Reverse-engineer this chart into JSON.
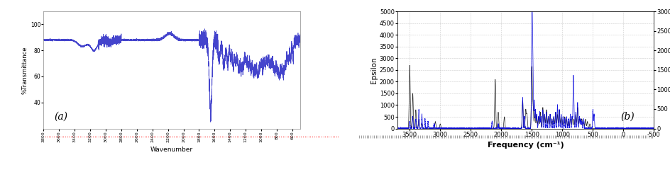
{
  "panel_a": {
    "xlabel": "Wavenumber",
    "ylabel": "%Transmittance",
    "xlim": [
      3800,
      500
    ],
    "ylim": [
      20,
      110
    ],
    "yticks": [
      40,
      60,
      80,
      100
    ],
    "xticks": [
      3800,
      3600,
      3400,
      3200,
      3000,
      2800,
      2600,
      2400,
      2200,
      2000,
      1800,
      1600,
      1400,
      1200,
      1000,
      800,
      600
    ],
    "line_color": "#4444cc",
    "label": "(a)",
    "background": "#ffffff"
  },
  "panel_b": {
    "xlabel": "Frequency (cm⁻¹)",
    "ylabel_left": "Epsilon",
    "xlim": [
      3700,
      -500
    ],
    "ylim_left": [
      5000,
      0
    ],
    "ylim_right": [
      3000,
      0
    ],
    "yticks_left": [
      0,
      500,
      1000,
      1500,
      2000,
      2500,
      3000,
      3500,
      4000,
      4500,
      5000
    ],
    "yticks_right": [
      0,
      500,
      1000,
      1500,
      2000,
      2500,
      3000
    ],
    "xticks": [
      3500,
      3000,
      2500,
      2000,
      1500,
      1000,
      500,
      0,
      -500
    ],
    "line_color_calc": "#222222",
    "line_color_exp": "#0000dd",
    "label": "(b)",
    "background": "#ffffff"
  }
}
